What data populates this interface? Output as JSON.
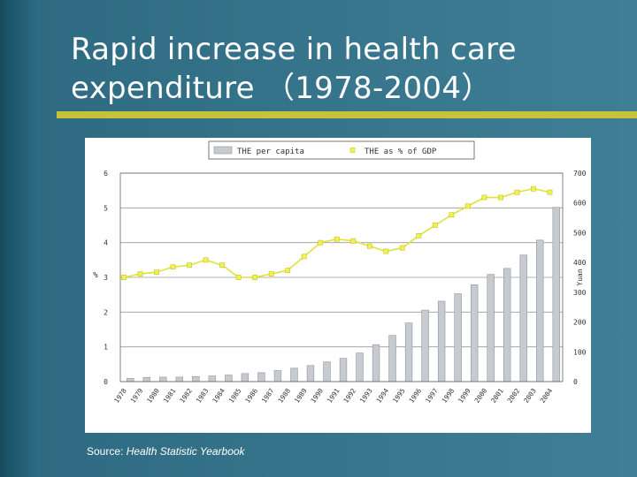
{
  "slide": {
    "title_line1": "Rapid increase in health care",
    "title_line2": "expenditure （1978-2004）",
    "source_prefix": "Source: ",
    "source_name": "Health Statistic Yearbook"
  },
  "colors": {
    "background": "#1f5f78",
    "title_bar": "#c6c23a",
    "bar_fill": "#c7cbd0",
    "line": "#e0e33a",
    "marker": "#f2f24a"
  },
  "chart_data": {
    "type": "bar",
    "legend": [
      "THE per capita",
      "THE as % of GDP"
    ],
    "legend_position": "top",
    "categories": [
      "1978",
      "1979",
      "1980",
      "1981",
      "1982",
      "1983",
      "1984",
      "1985",
      "1986",
      "1987",
      "1988",
      "1989",
      "1990",
      "1991",
      "1992",
      "1993",
      "1994",
      "1995",
      "1996",
      "1997",
      "1998",
      "1999",
      "2000",
      "2001",
      "2002",
      "2003",
      "2004"
    ],
    "series": [
      {
        "name": "THE per capita",
        "type": "bar",
        "axis": "right",
        "values": [
          11,
          14,
          15,
          15,
          17,
          19,
          22,
          27,
          30,
          37,
          45,
          54,
          66,
          78,
          96,
          124,
          155,
          197,
          240,
          270,
          295,
          325,
          360,
          380,
          425,
          475,
          585
        ]
      },
      {
        "name": "THE as % of GDP",
        "type": "line",
        "axis": "left",
        "values": [
          3.0,
          3.1,
          3.15,
          3.3,
          3.35,
          3.5,
          3.35,
          3.0,
          3.0,
          3.1,
          3.2,
          3.6,
          4.0,
          4.1,
          4.05,
          3.9,
          3.75,
          3.85,
          4.2,
          4.5,
          4.8,
          5.05,
          5.3,
          5.3,
          5.45,
          5.55,
          5.45
        ]
      }
    ],
    "y_left": {
      "label": "%",
      "min": 0,
      "max": 6,
      "ticks": [
        "0",
        "1",
        "2",
        "3",
        "4",
        "5",
        "6"
      ]
    },
    "y_right": {
      "label": "Yuan",
      "min": 0,
      "max": 700,
      "ticks": [
        "0",
        "100",
        "200",
        "300",
        "400",
        "500",
        "600",
        "700"
      ]
    },
    "grid": true
  }
}
